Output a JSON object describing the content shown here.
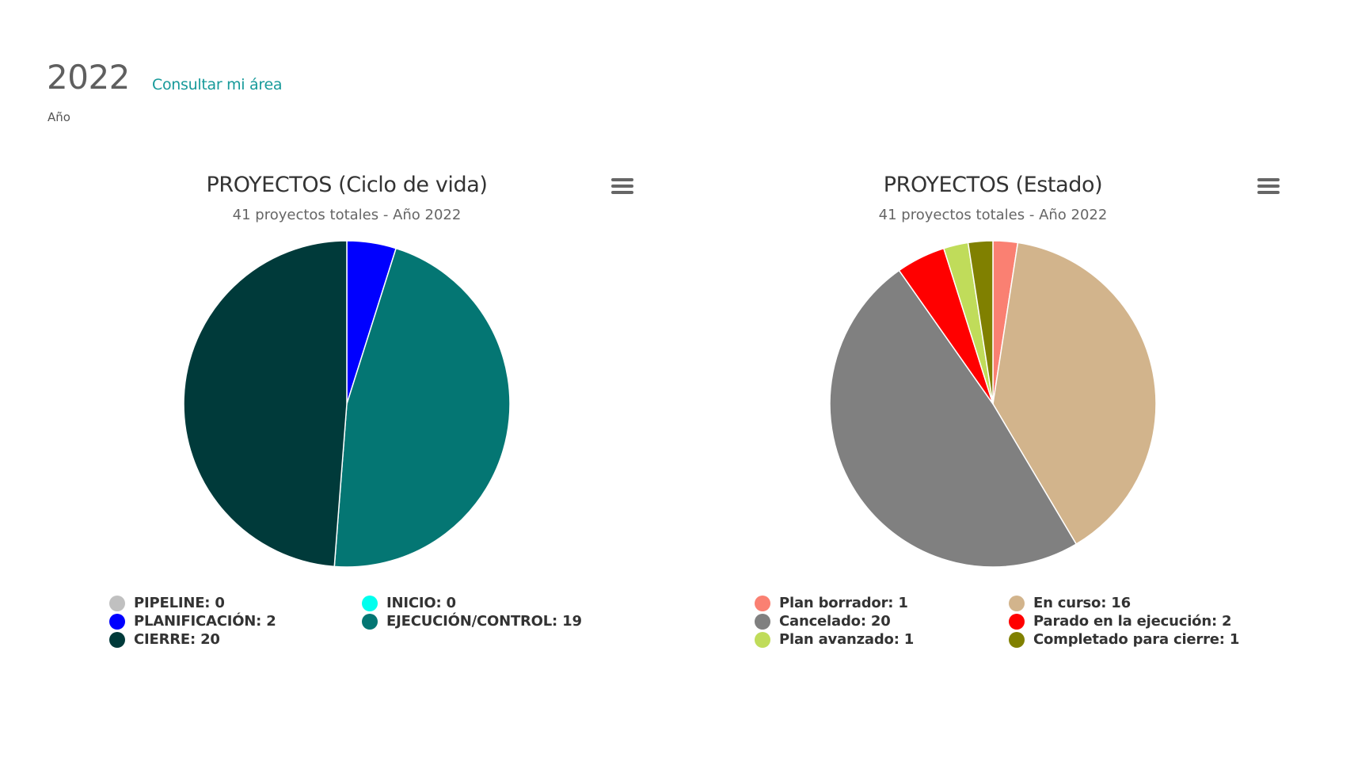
{
  "header": {
    "year_value": "2022",
    "year_label": "Año",
    "area_link_label": "Consultar mi área",
    "link_color": "#179a9a"
  },
  "charts": [
    {
      "title": "PROYECTOS (Ciclo de vida)",
      "subtitle": "41 proyectos totales - Año 2022",
      "menu_icon": "hamburger-menu-icon",
      "legend": [
        {
          "label": "PIPELINE: 0",
          "color": "#c0c0c0"
        },
        {
          "label": "INICIO: 0",
          "color": "#00ffee"
        },
        {
          "label": "PLANIFICACIÓN: 2",
          "color": "#0000ff"
        },
        {
          "label": "EJECUCIÓN/CONTROL: 19",
          "color": "#047673"
        },
        {
          "label": "CIERRE: 20",
          "color": "#003a3a"
        }
      ]
    },
    {
      "title": "PROYECTOS (Estado)",
      "subtitle": "41 proyectos totales - Año 2022",
      "menu_icon": "hamburger-menu-icon",
      "legend": [
        {
          "label": "Plan borrador: 1",
          "color": "#fa8072"
        },
        {
          "label": "En curso: 16",
          "color": "#d2b48c"
        },
        {
          "label": "Cancelado: 20",
          "color": "#808080"
        },
        {
          "label": "Parado en la ejecución: 2",
          "color": "#ff0000"
        },
        {
          "label": "Plan avanzado: 1",
          "color": "#c0dc5a"
        },
        {
          "label": "Completado para cierre: 1",
          "color": "#808000"
        }
      ]
    }
  ],
  "chart_data": [
    {
      "type": "pie",
      "title": "PROYECTOS (Ciclo de vida)",
      "subtitle": "41 proyectos totales - Año 2022",
      "categories": [
        "PIPELINE",
        "PLANIFICACIÓN",
        "INICIO",
        "EJECUCIÓN/CONTROL",
        "CIERRE"
      ],
      "values": [
        0,
        2,
        0,
        19,
        20
      ],
      "colors": [
        "#c0c0c0",
        "#0000ff",
        "#00ffee",
        "#047673",
        "#003a3a"
      ],
      "total": 41,
      "legend_position": "bottom"
    },
    {
      "type": "pie",
      "title": "PROYECTOS (Estado)",
      "subtitle": "41 proyectos totales - Año 2022",
      "categories": [
        "Plan borrador",
        "En curso",
        "Cancelado",
        "Parado en la ejecución",
        "Plan avanzado",
        "Completado para cierre"
      ],
      "values": [
        1,
        16,
        20,
        2,
        1,
        1
      ],
      "colors": [
        "#fa8072",
        "#d2b48c",
        "#808080",
        "#ff0000",
        "#c0dc5a",
        "#808000"
      ],
      "total": 41,
      "legend_position": "bottom"
    }
  ]
}
